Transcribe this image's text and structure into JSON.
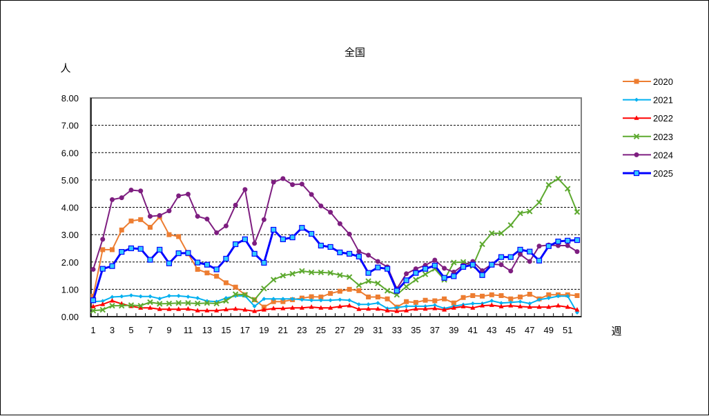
{
  "chart_data": {
    "type": "line",
    "title": "全国",
    "ylabel": "人",
    "xlabel": "週",
    "ylim": [
      0,
      8
    ],
    "yticks": [
      "0.00",
      "1.00",
      "2.00",
      "3.00",
      "4.00",
      "5.00",
      "6.00",
      "7.00",
      "8.00"
    ],
    "xticks": [
      1,
      3,
      5,
      7,
      9,
      11,
      13,
      15,
      17,
      19,
      21,
      23,
      25,
      27,
      29,
      31,
      33,
      35,
      37,
      39,
      41,
      43,
      45,
      47,
      49,
      51
    ],
    "x": [
      1,
      2,
      3,
      4,
      5,
      6,
      7,
      8,
      9,
      10,
      11,
      12,
      13,
      14,
      15,
      16,
      17,
      18,
      19,
      20,
      21,
      22,
      23,
      24,
      25,
      26,
      27,
      28,
      29,
      30,
      31,
      32,
      33,
      34,
      35,
      36,
      37,
      38,
      39,
      40,
      41,
      42,
      43,
      44,
      45,
      46,
      47,
      48,
      49,
      50,
      51,
      52
    ],
    "grid": "horizontal dashed",
    "legend_position": "right",
    "series": [
      {
        "name": "2020",
        "color": "#ED7D31",
        "marker": "square",
        "values": [
          0.75,
          2.45,
          2.45,
          3.17,
          3.5,
          3.55,
          3.27,
          3.65,
          3.0,
          2.93,
          2.3,
          1.73,
          1.6,
          1.48,
          1.24,
          1.08,
          0.8,
          0.62,
          0.35,
          0.55,
          0.55,
          0.62,
          0.68,
          0.73,
          0.72,
          0.85,
          0.93,
          1.0,
          0.95,
          0.72,
          0.72,
          0.65,
          0.35,
          0.55,
          0.52,
          0.6,
          0.58,
          0.65,
          0.5,
          0.7,
          0.77,
          0.75,
          0.8,
          0.77,
          0.65,
          0.72,
          0.82,
          0.65,
          0.8,
          0.8,
          0.8,
          0.77
        ]
      },
      {
        "name": "2021",
        "color": "#00B0F0",
        "marker": "diamond",
        "values": [
          0.55,
          0.57,
          0.72,
          0.74,
          0.78,
          0.74,
          0.74,
          0.66,
          0.76,
          0.76,
          0.73,
          0.68,
          0.57,
          0.55,
          0.68,
          0.76,
          0.76,
          0.38,
          0.65,
          0.65,
          0.65,
          0.65,
          0.62,
          0.6,
          0.6,
          0.6,
          0.62,
          0.6,
          0.45,
          0.45,
          0.5,
          0.3,
          0.33,
          0.38,
          0.38,
          0.38,
          0.42,
          0.3,
          0.38,
          0.44,
          0.48,
          0.48,
          0.58,
          0.5,
          0.52,
          0.55,
          0.48,
          0.62,
          0.68,
          0.75,
          0.75,
          0.15
        ]
      },
      {
        "name": "2022",
        "color": "#FF0000",
        "marker": "triangle",
        "values": [
          0.37,
          0.45,
          0.58,
          0.47,
          0.38,
          0.32,
          0.32,
          0.27,
          0.27,
          0.27,
          0.28,
          0.22,
          0.22,
          0.22,
          0.26,
          0.28,
          0.25,
          0.2,
          0.25,
          0.3,
          0.3,
          0.32,
          0.32,
          0.35,
          0.32,
          0.32,
          0.37,
          0.4,
          0.27,
          0.28,
          0.28,
          0.22,
          0.2,
          0.22,
          0.28,
          0.28,
          0.3,
          0.25,
          0.32,
          0.37,
          0.32,
          0.4,
          0.42,
          0.37,
          0.4,
          0.37,
          0.35,
          0.35,
          0.35,
          0.4,
          0.35,
          0.25
        ]
      },
      {
        "name": "2023",
        "color": "#5DA92F",
        "marker": "x",
        "values": [
          0.22,
          0.25,
          0.4,
          0.4,
          0.42,
          0.4,
          0.53,
          0.47,
          0.48,
          0.5,
          0.5,
          0.48,
          0.5,
          0.48,
          0.58,
          0.82,
          0.8,
          0.62,
          1.03,
          1.35,
          1.5,
          1.57,
          1.67,
          1.62,
          1.62,
          1.6,
          1.52,
          1.45,
          1.15,
          1.3,
          1.22,
          0.95,
          0.8,
          1.1,
          1.35,
          1.55,
          1.75,
          1.35,
          1.98,
          2.0,
          1.85,
          2.65,
          3.05,
          3.05,
          3.35,
          3.78,
          3.85,
          4.18,
          4.82,
          5.05,
          4.68,
          3.83
        ]
      },
      {
        "name": "2024",
        "color": "#7E1E80",
        "marker": "circle",
        "values": [
          1.73,
          2.83,
          4.28,
          4.35,
          4.63,
          4.6,
          3.67,
          3.7,
          3.87,
          4.42,
          4.48,
          3.67,
          3.57,
          3.07,
          3.32,
          4.08,
          4.65,
          2.68,
          3.55,
          4.92,
          5.05,
          4.83,
          4.85,
          4.47,
          4.05,
          3.82,
          3.4,
          3.02,
          2.38,
          2.25,
          2.02,
          1.82,
          1.02,
          1.57,
          1.75,
          1.88,
          2.07,
          1.77,
          1.63,
          1.88,
          2.02,
          1.68,
          1.92,
          1.9,
          1.67,
          2.28,
          2.02,
          2.58,
          2.62,
          2.6,
          2.6,
          2.38
        ]
      },
      {
        "name": "2025",
        "color": "#0000FF",
        "marker": "square-open",
        "marker_fill": "#33CCFF",
        "line_width": 3,
        "values": [
          0.6,
          1.75,
          1.85,
          2.37,
          2.5,
          2.48,
          2.08,
          2.45,
          1.95,
          2.32,
          2.33,
          1.98,
          1.9,
          1.73,
          2.12,
          2.65,
          2.83,
          2.3,
          1.97,
          3.18,
          2.83,
          2.9,
          3.25,
          3.03,
          2.6,
          2.55,
          2.35,
          2.3,
          2.2,
          1.6,
          1.8,
          1.75,
          0.95,
          1.33,
          1.6,
          1.75,
          1.87,
          1.42,
          1.48,
          1.82,
          1.9,
          1.52,
          1.9,
          2.18,
          2.18,
          2.45,
          2.38,
          2.05,
          2.58,
          2.75,
          2.78,
          2.8
        ]
      }
    ]
  }
}
